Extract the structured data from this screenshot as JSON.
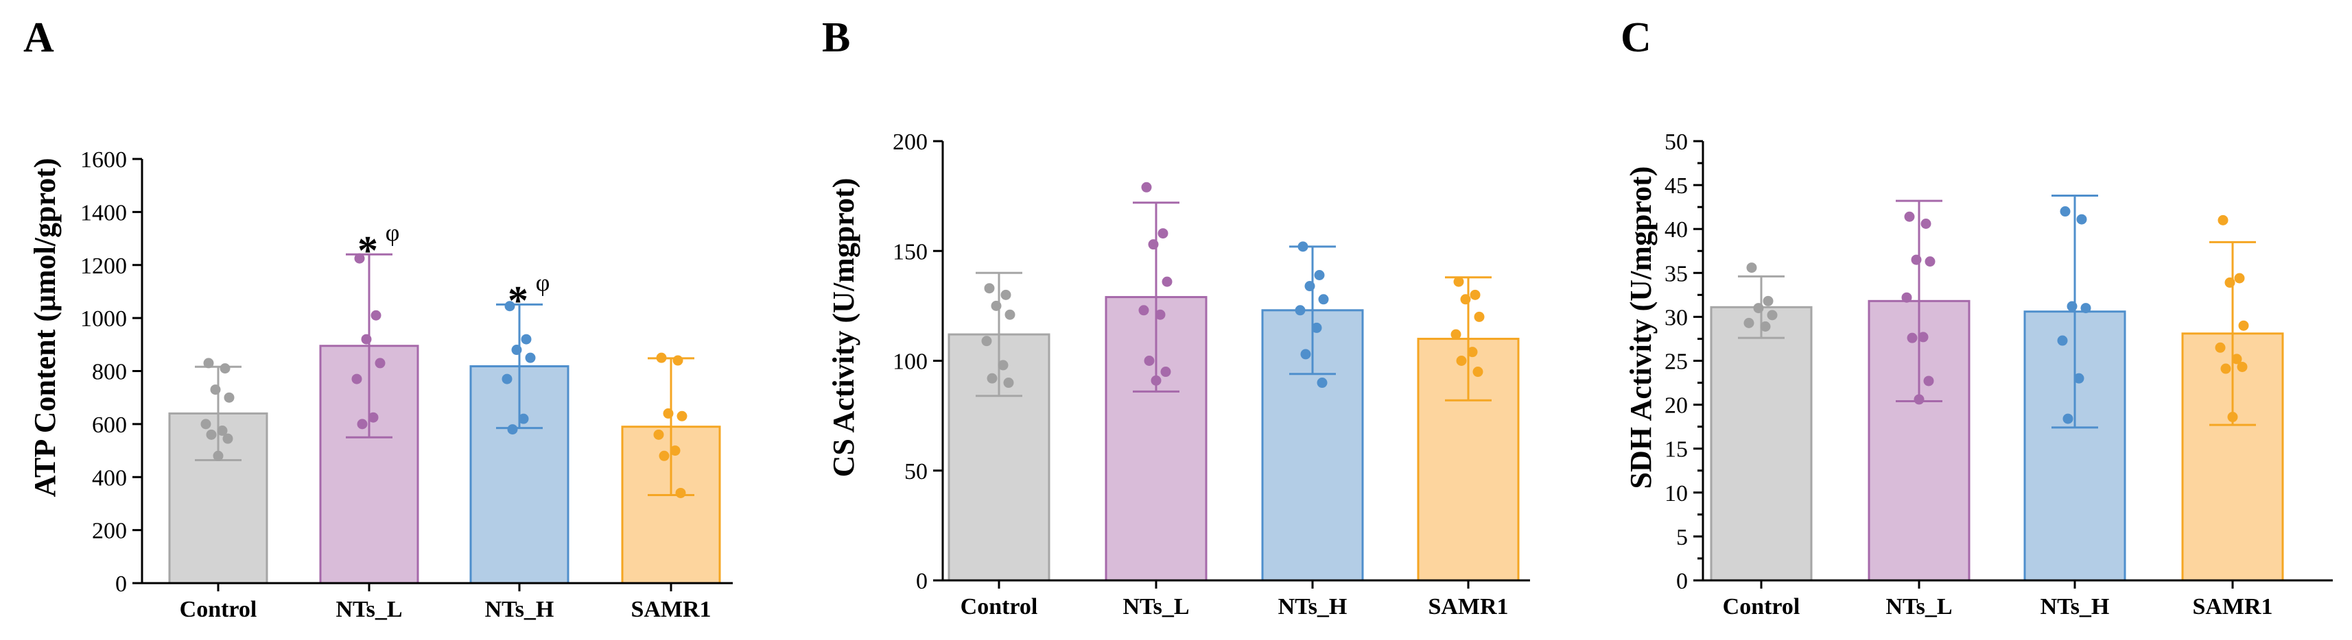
{
  "colors": {
    "Control": {
      "fill": "#d3d3d3",
      "edge": "#a6a6a6",
      "dot": "#a0a0a0"
    },
    "NTs_L": {
      "fill": "#d9bcd9",
      "edge": "#a669aa",
      "dot": "#a669aa"
    },
    "NTs_H": {
      "fill": "#b3cde6",
      "edge": "#4f8fcc",
      "dot": "#4f8fcc"
    },
    "SAMR1": {
      "fill": "#fdd59e",
      "edge": "#f5a623",
      "dot": "#f5a623"
    }
  },
  "chart_data": [
    {
      "panel": "A",
      "type": "bar",
      "ylabel": "ATP Content (μmol/gprot)",
      "ylim": [
        0,
        1600
      ],
      "ticks": [
        0,
        200,
        400,
        600,
        800,
        1000,
        1200,
        1400,
        1600
      ],
      "tick_labels": [
        "0",
        "200",
        "400",
        "600",
        "800",
        "1000",
        "1200",
        "1400",
        "1600"
      ],
      "minor_ticks": false,
      "categories": [
        "Control",
        "NTs_L",
        "NTs_H",
        "SAMR1"
      ],
      "values": [
        640,
        895,
        818,
        590
      ],
      "errors": [
        176,
        345,
        233,
        258
      ],
      "points": [
        [
          830,
          810,
          730,
          700,
          600,
          575,
          560,
          545,
          480
        ],
        [
          1225,
          1010,
          920,
          830,
          770,
          625,
          600
        ],
        [
          1045,
          920,
          880,
          850,
          770,
          620,
          580
        ],
        [
          850,
          840,
          640,
          630,
          560,
          500,
          480,
          340
        ]
      ],
      "significance": [
        {
          "category": "NTs_L",
          "star": "*",
          "symbol": "φ"
        },
        {
          "category": "NTs_H",
          "star": "*",
          "symbol": "φ"
        }
      ]
    },
    {
      "panel": "B",
      "type": "bar",
      "ylabel": "CS Activity (U/mgprot)",
      "ylim": [
        0,
        200
      ],
      "ticks": [
        0,
        50,
        100,
        150,
        200
      ],
      "tick_labels": [
        "0",
        "50",
        "100",
        "150",
        "200"
      ],
      "minor_ticks": false,
      "categories": [
        "Control",
        "NTs_L",
        "NTs_H",
        "SAMR1"
      ],
      "values": [
        112,
        129,
        123,
        110
      ],
      "errors": [
        28,
        43,
        29,
        28
      ],
      "points": [
        [
          133,
          130,
          125,
          121,
          109,
          98,
          92,
          90
        ],
        [
          179,
          158,
          153,
          136,
          123,
          121,
          100,
          95,
          91
        ],
        [
          152,
          139,
          134,
          128,
          123,
          115,
          103,
          90
        ],
        [
          136,
          130,
          128,
          120,
          112,
          104,
          100,
          95
        ]
      ],
      "significance": []
    },
    {
      "panel": "C",
      "type": "bar",
      "ylabel": "SDH Activity (U/mgprot)",
      "ylim": [
        0,
        50
      ],
      "ticks": [
        0,
        5,
        10,
        15,
        20,
        25,
        30,
        35,
        40,
        45,
        50
      ],
      "tick_labels": [
        "0",
        "5",
        "10",
        "15",
        "20",
        "25",
        "30",
        "35",
        "40",
        "45",
        "50"
      ],
      "minor_ticks": true,
      "categories": [
        "Control",
        "NTs_L",
        "NTs_H",
        "SAMR1"
      ],
      "values": [
        31.1,
        31.8,
        30.6,
        28.1
      ],
      "errors": [
        3.5,
        11.4,
        13.2,
        10.4
      ],
      "points": [
        [
          35.6,
          31.8,
          31.0,
          30.2,
          29.3,
          28.9
        ],
        [
          41.4,
          40.6,
          36.5,
          36.3,
          32.2,
          27.7,
          27.6,
          22.7,
          20.6
        ],
        [
          42.0,
          41.1,
          31.2,
          31.0,
          27.3,
          23.0,
          18.4
        ],
        [
          41.0,
          34.4,
          33.9,
          29.0,
          26.5,
          25.2,
          24.1,
          24.3,
          18.6
        ]
      ],
      "significance": []
    }
  ]
}
